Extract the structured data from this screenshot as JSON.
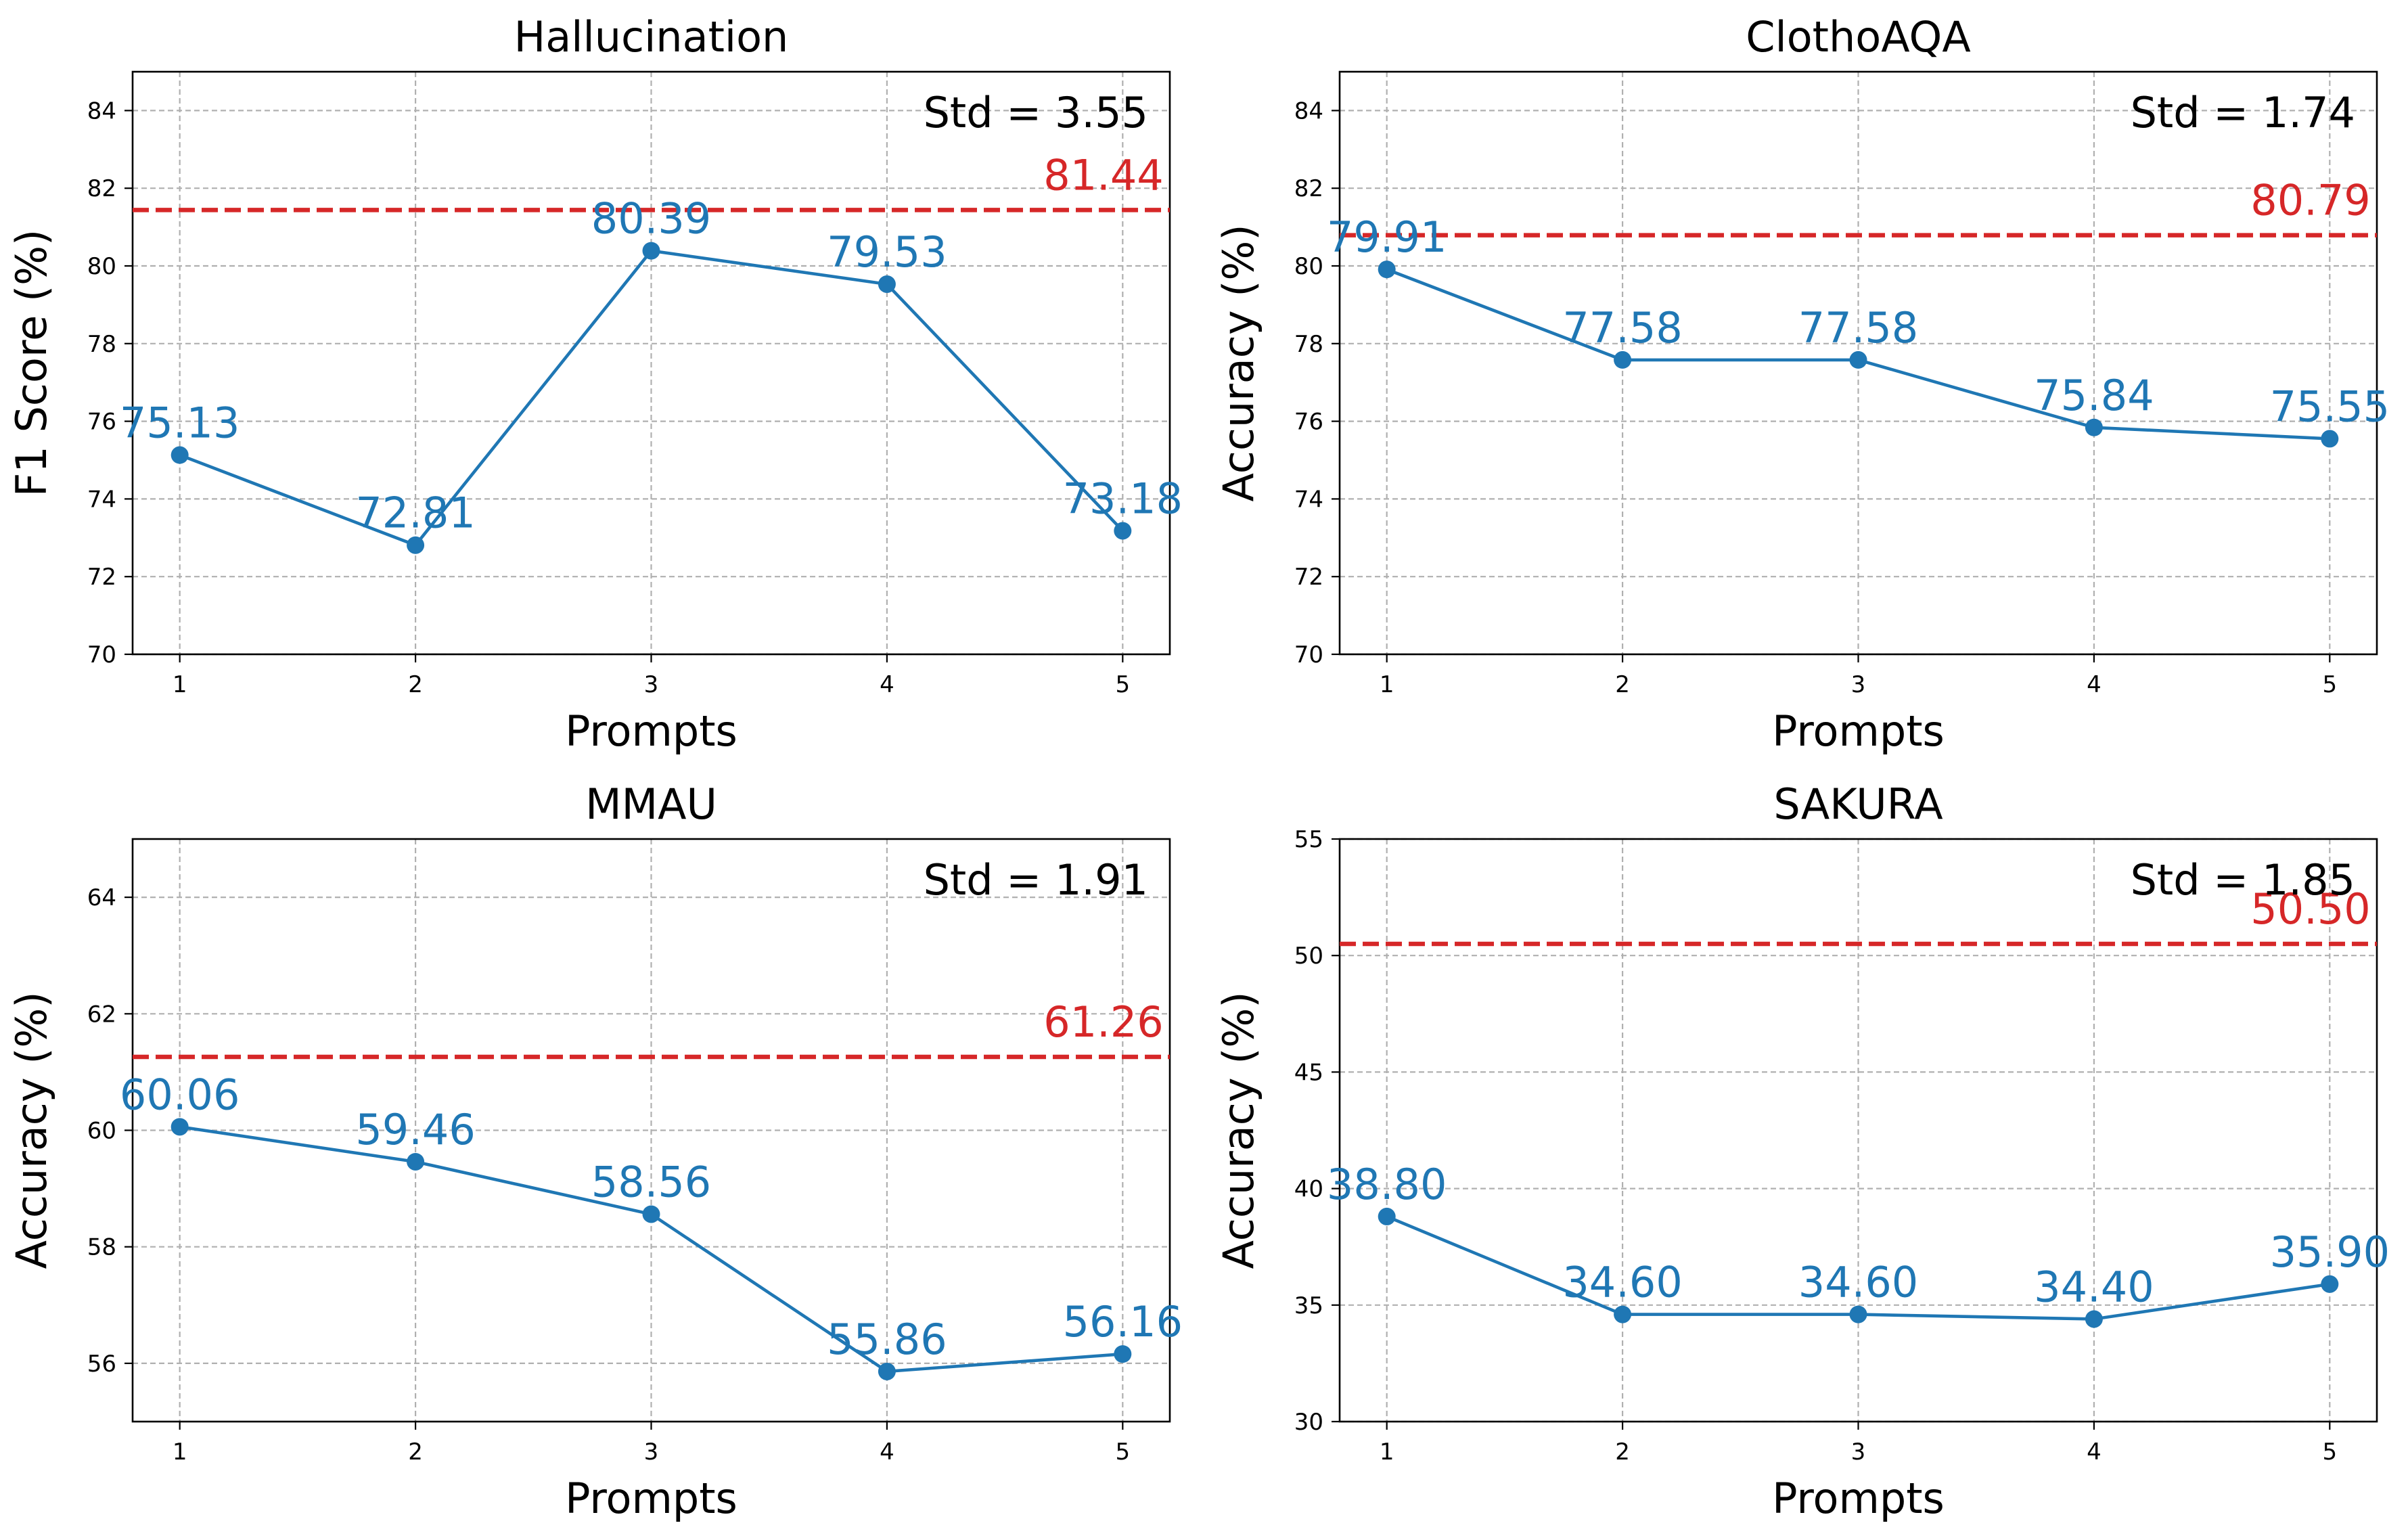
{
  "colors": {
    "series": "#1f77b4",
    "reference": "#d62728"
  },
  "chart_data": [
    {
      "type": "line",
      "title": "Hallucination",
      "xlabel": "Prompts",
      "ylabel": "F1 Score (%)",
      "x": [
        1,
        2,
        3,
        4,
        5
      ],
      "x_tick_labels": [
        "1",
        "2",
        "3",
        "4",
        "5"
      ],
      "values": [
        75.13,
        72.81,
        80.39,
        79.53,
        73.18
      ],
      "data_labels": [
        "75.13",
        "72.81",
        "80.39",
        "79.53",
        "73.18"
      ],
      "xlim": [
        0.8,
        5.2
      ],
      "ylim": [
        70,
        85
      ],
      "yticks": [
        70,
        72,
        74,
        76,
        78,
        80,
        82,
        84
      ],
      "y_tick_labels": [
        "70",
        "72",
        "74",
        "76",
        "78",
        "80",
        "82",
        "84"
      ],
      "reference_value": 81.44,
      "reference_label": "81.44",
      "std_label": "Std = 3.55",
      "grid": true
    },
    {
      "type": "line",
      "title": "ClothoAQA",
      "xlabel": "Prompts",
      "ylabel": "Accuracy (%)",
      "x": [
        1,
        2,
        3,
        4,
        5
      ],
      "x_tick_labels": [
        "1",
        "2",
        "3",
        "4",
        "5"
      ],
      "values": [
        79.91,
        77.58,
        77.58,
        75.84,
        75.55
      ],
      "data_labels": [
        "79.91",
        "77.58",
        "77.58",
        "75.84",
        "75.55"
      ],
      "xlim": [
        0.8,
        5.2
      ],
      "ylim": [
        70,
        85
      ],
      "yticks": [
        70,
        72,
        74,
        76,
        78,
        80,
        82,
        84
      ],
      "y_tick_labels": [
        "70",
        "72",
        "74",
        "76",
        "78",
        "80",
        "82",
        "84"
      ],
      "reference_value": 80.79,
      "reference_label": "80.79",
      "std_label": "Std = 1.74",
      "grid": true
    },
    {
      "type": "line",
      "title": "MMAU",
      "xlabel": "Prompts",
      "ylabel": "Accuracy (%)",
      "x": [
        1,
        2,
        3,
        4,
        5
      ],
      "x_tick_labels": [
        "1",
        "2",
        "3",
        "4",
        "5"
      ],
      "values": [
        60.06,
        59.46,
        58.56,
        55.86,
        56.16
      ],
      "data_labels": [
        "60.06",
        "59.46",
        "58.56",
        "55.86",
        "56.16"
      ],
      "xlim": [
        0.8,
        5.2
      ],
      "ylim": [
        55,
        65
      ],
      "yticks": [
        56,
        58,
        60,
        62,
        64
      ],
      "y_tick_labels": [
        "56",
        "58",
        "60",
        "62",
        "64"
      ],
      "reference_value": 61.26,
      "reference_label": "61.26",
      "std_label": "Std = 1.91",
      "grid": true
    },
    {
      "type": "line",
      "title": "SAKURA",
      "xlabel": "Prompts",
      "ylabel": "Accuracy (%)",
      "x": [
        1,
        2,
        3,
        4,
        5
      ],
      "x_tick_labels": [
        "1",
        "2",
        "3",
        "4",
        "5"
      ],
      "values": [
        38.8,
        34.6,
        34.6,
        34.4,
        35.9
      ],
      "data_labels": [
        "38.80",
        "34.60",
        "34.60",
        "34.40",
        "35.90"
      ],
      "xlim": [
        0.8,
        5.2
      ],
      "ylim": [
        30,
        55
      ],
      "yticks": [
        30,
        35,
        40,
        45,
        50,
        55
      ],
      "y_tick_labels": [
        "30",
        "35",
        "40",
        "45",
        "50",
        "55"
      ],
      "reference_value": 50.5,
      "reference_label": "50.50",
      "std_label": "Std = 1.85",
      "grid": true
    }
  ]
}
